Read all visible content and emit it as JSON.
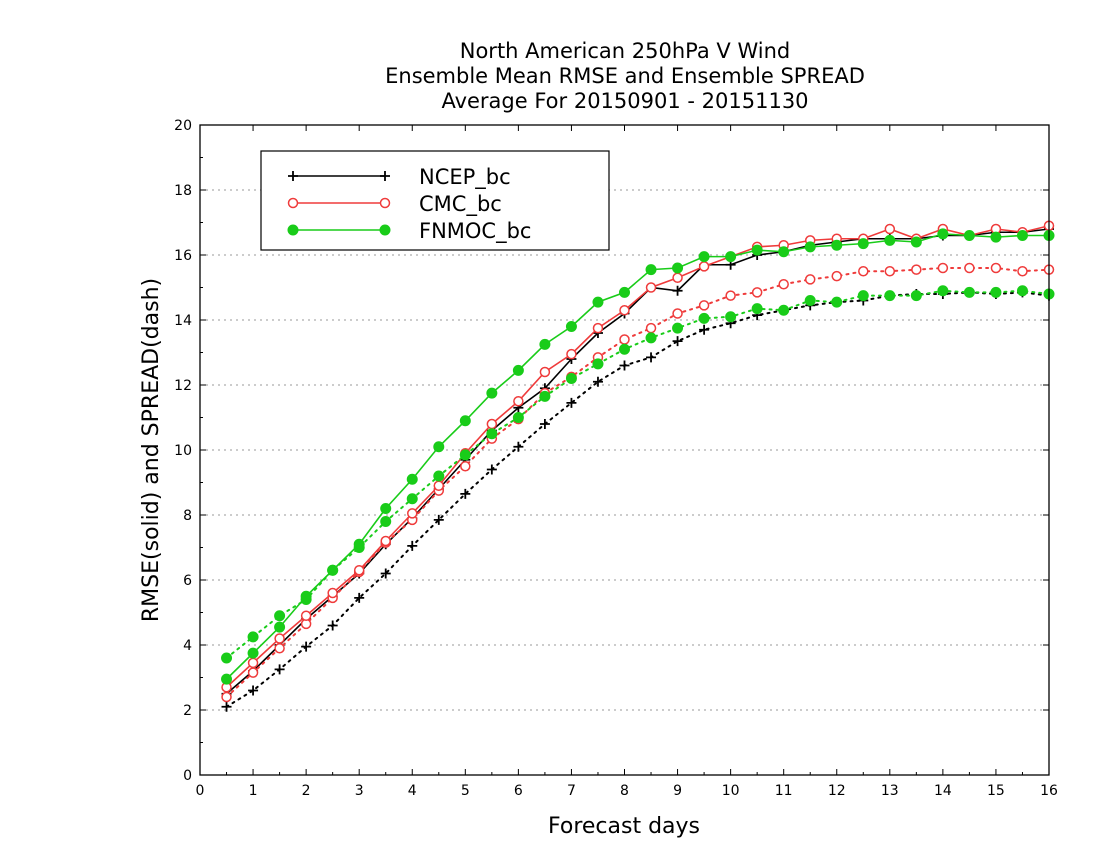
{
  "chart_data": {
    "type": "line",
    "title_lines": [
      "North American 250hPa V Wind",
      "Ensemble Mean RMSE and Ensemble SPREAD",
      "Average For 20150901 - 20151130"
    ],
    "xlabel": "Forecast days",
    "ylabel": "RMSE(solid) and SPREAD(dash)",
    "xlim": [
      0,
      16
    ],
    "ylim": [
      0,
      20
    ],
    "x_ticks": [
      0,
      1,
      2,
      3,
      4,
      5,
      6,
      7,
      8,
      9,
      10,
      11,
      12,
      13,
      14,
      15,
      16
    ],
    "y_ticks": [
      0,
      2,
      4,
      6,
      8,
      10,
      12,
      14,
      16,
      18,
      20
    ],
    "grid": true,
    "legend_position": "top-left",
    "x": [
      0.5,
      1,
      1.5,
      2,
      2.5,
      3,
      3.5,
      4,
      4.5,
      5,
      5.5,
      6,
      6.5,
      7,
      7.5,
      8,
      8.5,
      9,
      9.5,
      10,
      10.5,
      11,
      11.5,
      12,
      12.5,
      13,
      13.5,
      14,
      14.5,
      15,
      15.5,
      16
    ],
    "series": [
      {
        "name": "NCEP_bc",
        "color": "#000000",
        "marker": "plus",
        "rmse": [
          2.5,
          3.2,
          4.0,
          4.8,
          5.5,
          6.2,
          7.1,
          7.9,
          8.8,
          9.7,
          10.6,
          11.3,
          11.9,
          12.8,
          13.6,
          14.2,
          15.0,
          14.9,
          15.7,
          15.7,
          16.0,
          16.1,
          16.3,
          16.4,
          16.5,
          16.5,
          16.5,
          16.6,
          16.6,
          16.7,
          16.7,
          16.8
        ],
        "spread": [
          2.1,
          2.6,
          3.25,
          3.95,
          4.6,
          5.45,
          6.2,
          7.05,
          7.85,
          8.65,
          9.4,
          10.1,
          10.8,
          11.45,
          12.1,
          12.6,
          12.85,
          13.35,
          13.7,
          13.9,
          14.15,
          14.3,
          14.45,
          14.55,
          14.6,
          14.75,
          14.8,
          14.8,
          14.85,
          14.8,
          14.85,
          14.75
        ]
      },
      {
        "name": "CMC_bc",
        "color": "#ef3b3b",
        "marker": "open-circle",
        "rmse": [
          2.7,
          3.45,
          4.2,
          4.9,
          5.6,
          6.3,
          7.2,
          8.05,
          8.9,
          9.9,
          10.8,
          11.5,
          12.4,
          12.95,
          13.75,
          14.3,
          15.0,
          15.3,
          15.65,
          15.95,
          16.25,
          16.3,
          16.45,
          16.5,
          16.5,
          16.8,
          16.5,
          16.8,
          16.6,
          16.8,
          16.7,
          16.9
        ],
        "spread": [
          2.4,
          3.15,
          3.9,
          4.65,
          5.45,
          6.25,
          7.15,
          7.85,
          8.75,
          9.5,
          10.35,
          10.95,
          11.75,
          12.25,
          12.85,
          13.4,
          13.75,
          14.2,
          14.45,
          14.75,
          14.85,
          15.1,
          15.25,
          15.35,
          15.5,
          15.5,
          15.55,
          15.6,
          15.6,
          15.6,
          15.5,
          15.55
        ]
      },
      {
        "name": "FNMOC_bc",
        "color": "#19cc19",
        "marker": "filled-circle",
        "rmse": [
          2.95,
          3.75,
          4.55,
          5.5,
          6.3,
          7.1,
          8.2,
          9.1,
          10.1,
          10.9,
          11.75,
          12.45,
          13.25,
          13.8,
          14.55,
          14.85,
          15.55,
          15.6,
          15.95,
          15.95,
          16.15,
          16.1,
          16.25,
          16.3,
          16.35,
          16.45,
          16.4,
          16.65,
          16.6,
          16.55,
          16.6,
          16.6
        ],
        "spread": [
          3.6,
          4.25,
          4.9,
          5.4,
          6.3,
          7.0,
          7.8,
          8.5,
          9.2,
          9.85,
          10.5,
          11.0,
          11.65,
          12.2,
          12.65,
          13.1,
          13.45,
          13.75,
          14.05,
          14.1,
          14.35,
          14.3,
          14.6,
          14.55,
          14.75,
          14.75,
          14.75,
          14.9,
          14.85,
          14.85,
          14.9,
          14.8
        ]
      }
    ]
  }
}
